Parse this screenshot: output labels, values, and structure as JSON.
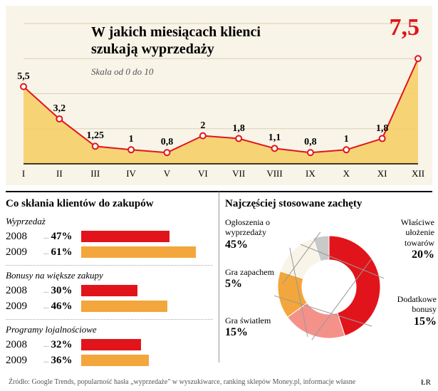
{
  "line_chart": {
    "type": "line-area",
    "title": "W jakich miesiącach klienci szukają wyprzedaży",
    "subtitle": "Skala od 0 do 10",
    "peak_label": "7,5",
    "peak_color": "#e2141b",
    "ylim": [
      0,
      10
    ],
    "background_color": "#f9f4e8",
    "area_color": "#f6ce62",
    "line_color": "#e2141b",
    "line_width": 2,
    "marker_fill": "#ffffff",
    "marker_stroke": "#e2141b",
    "marker_radius": 4,
    "grid_color": "#d9d0b8",
    "label_fontsize": 14,
    "xlabel_fontsize": 13,
    "x_labels": [
      "I",
      "II",
      "III",
      "IV",
      "V",
      "VI",
      "VII",
      "VIII",
      "IX",
      "X",
      "XI",
      "XII"
    ],
    "values": [
      5.5,
      3.2,
      1.25,
      1,
      0.8,
      2,
      1.8,
      1.1,
      0.8,
      1,
      1.8,
      7.5
    ],
    "value_labels": [
      "5,5",
      "3,2",
      "1,25",
      "1",
      "0,8",
      "2",
      "1,8",
      "1,1",
      "0,8",
      "1",
      "1,8",
      "7,5"
    ]
  },
  "bars": {
    "type": "bar",
    "title": "Co skłania klientów do zakupów",
    "max_pct": 70,
    "color_2008": "#e2141b",
    "color_2009": "#f2a63c",
    "groups": [
      {
        "title": "Wyprzedaż",
        "rows": [
          {
            "year": "2008",
            "pct": "47%",
            "value": 47,
            "color": "#e2141b"
          },
          {
            "year": "2009",
            "pct": "61%",
            "value": 61,
            "color": "#f2a63c"
          }
        ]
      },
      {
        "title": "Bonusy na większe zakupy",
        "rows": [
          {
            "year": "2008",
            "pct": "30%",
            "value": 30,
            "color": "#e2141b"
          },
          {
            "year": "2009",
            "pct": "46%",
            "value": 46,
            "color": "#f2a63c"
          }
        ]
      },
      {
        "title": "Programy lojalnościowe",
        "rows": [
          {
            "year": "2008",
            "pct": "32%",
            "value": 32,
            "color": "#e2141b"
          },
          {
            "year": "2009",
            "pct": "36%",
            "value": 36,
            "color": "#f2a63c"
          }
        ]
      }
    ]
  },
  "donut": {
    "type": "pie",
    "title": "Najczęściej stosowane zachęty",
    "inner_radius": 38,
    "outer_radius": 72,
    "center_color": "#ffffff",
    "leader_color": "#999999",
    "slices": [
      {
        "label": "Ogłoszenia o wyprzedaży",
        "pct_label": "45%",
        "value": 45,
        "color": "#e2141b"
      },
      {
        "label": "Właściwe ułożenie towarów",
        "pct_label": "20%",
        "value": 20,
        "color": "#f4928a"
      },
      {
        "label": "Dodatkowe bonusy",
        "pct_label": "15%",
        "value": 15,
        "color": "#f2a63c"
      },
      {
        "label": "Gra światłem",
        "pct_label": "15%",
        "value": 15,
        "color": "#f9f4e8"
      },
      {
        "label": "Gra zapachem",
        "pct_label": "5%",
        "value": 5,
        "color": "#c9c9c9"
      }
    ]
  },
  "source": "Źródło: Google Trends, popularność hasła „wyprzedaże\" w wyszukiwarce, ranking sklepów Money.pl, informacje własne",
  "signature": "ŁR"
}
